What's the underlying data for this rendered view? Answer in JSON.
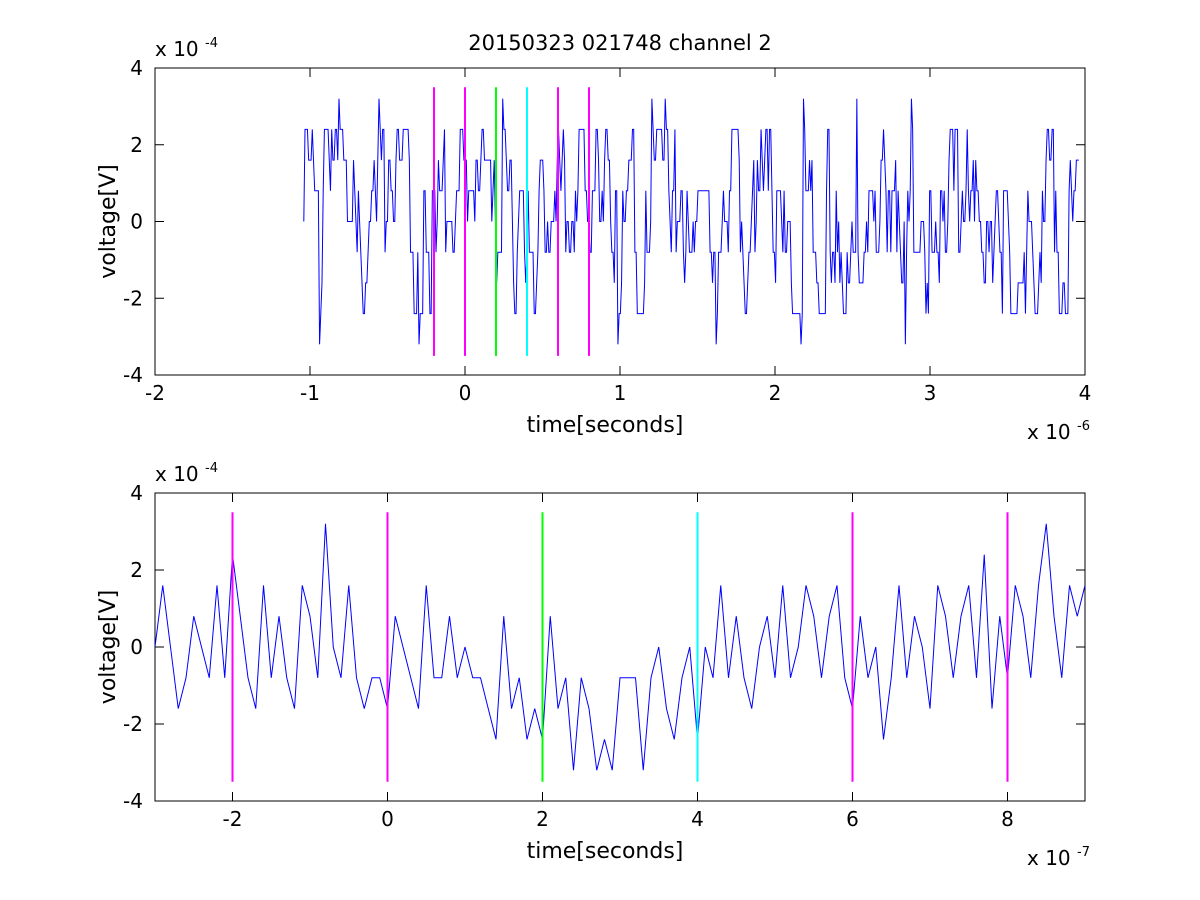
{
  "title": "20150323 021748 channel 2",
  "colors": {
    "signal": "#0000ff",
    "marker_magenta": "#ff00ff",
    "marker_green": "#00ff00",
    "marker_cyan": "#00ffff",
    "axes": "#000000",
    "background": "#ffffff"
  },
  "chart_data": [
    {
      "type": "line",
      "xlabel": "time[seconds]",
      "ylabel": "voltage[V]",
      "x_exponent_label": "x 10",
      "x_exponent": "-6",
      "y_exponent_label": "x 10",
      "y_exponent": "-4",
      "xlim": [
        -2,
        4
      ],
      "ylim": [
        -4,
        4
      ],
      "x_ticks": [
        -2,
        -1,
        0,
        1,
        2,
        3,
        4
      ],
      "x_tick_labels": [
        "-2",
        "-1",
        "0",
        "1",
        "2",
        "3",
        "4"
      ],
      "y_ticks": [
        -4,
        -2,
        0,
        2,
        4
      ],
      "y_tick_labels": [
        "-4",
        "-2",
        "0",
        "2",
        "4"
      ],
      "grid": false,
      "signal_x_range": [
        -1.04,
        3.96
      ],
      "signal_levels": [
        -3.2,
        -2.4,
        -1.6,
        -0.8,
        0,
        0.8,
        1.6,
        2.4,
        3.2
      ],
      "markers": [
        {
          "x": -0.2,
          "color": "magenta",
          "ymin": -3.5,
          "ymax": 3.5
        },
        {
          "x": 0.0,
          "color": "magenta",
          "ymin": -3.5,
          "ymax": 3.5
        },
        {
          "x": 0.2,
          "color": "green",
          "ymin": -3.5,
          "ymax": 3.5
        },
        {
          "x": 0.4,
          "color": "cyan",
          "ymin": -3.5,
          "ymax": 3.5
        },
        {
          "x": 0.6,
          "color": "magenta",
          "ymin": -3.5,
          "ymax": 3.5
        },
        {
          "x": 0.8,
          "color": "magenta",
          "ymin": -3.5,
          "ymax": 3.5
        }
      ]
    },
    {
      "type": "line",
      "xlabel": "time[seconds]",
      "ylabel": "voltage[V]",
      "x_exponent_label": "x 10",
      "x_exponent": "-7",
      "y_exponent_label": "x 10",
      "y_exponent": "-4",
      "xlim": [
        -3,
        9
      ],
      "ylim": [
        -4,
        4
      ],
      "x_ticks": [
        -2,
        0,
        2,
        4,
        6,
        8
      ],
      "x_tick_labels": [
        "-2",
        "0",
        "2",
        "4",
        "6",
        "8"
      ],
      "y_ticks": [
        -4,
        -2,
        0,
        2,
        4
      ],
      "y_tick_labels": [
        "-4",
        "-2",
        "0",
        "2",
        "4"
      ],
      "grid": false,
      "signal_levels": [
        -3.2,
        -2.4,
        -1.6,
        -0.8,
        0,
        0.8,
        1.6,
        2.4,
        3.2
      ],
      "markers": [
        {
          "x": -2,
          "color": "magenta",
          "ymin": -3.5,
          "ymax": 3.5
        },
        {
          "x": 0,
          "color": "magenta",
          "ymin": -3.5,
          "ymax": 3.5
        },
        {
          "x": 2,
          "color": "green",
          "ymin": -3.5,
          "ymax": 3.5
        },
        {
          "x": 4,
          "color": "cyan",
          "ymin": -3.5,
          "ymax": 3.5
        },
        {
          "x": 6,
          "color": "magenta",
          "ymin": -3.5,
          "ymax": 3.5
        },
        {
          "x": 8,
          "color": "magenta",
          "ymin": -3.5,
          "ymax": 3.5
        }
      ],
      "series": [
        {
          "x": [
            -3.0,
            -2.9,
            -2.8,
            -2.7,
            -2.6,
            -2.5,
            -2.4,
            -2.3,
            -2.2,
            -2.1,
            -2.0,
            -1.9,
            -1.8,
            -1.7,
            -1.6,
            -1.5,
            -1.4,
            -1.3,
            -1.2,
            -1.1,
            -1.0,
            -0.9,
            -0.8,
            -0.7,
            -0.6,
            -0.5,
            -0.4,
            -0.3,
            -0.2,
            -0.1,
            0.0,
            0.1,
            0.2,
            0.3,
            0.4,
            0.5,
            0.6,
            0.7,
            0.8,
            0.9,
            1.0,
            1.1,
            1.2,
            1.3,
            1.4,
            1.5,
            1.6,
            1.7,
            1.8,
            1.9,
            2.0,
            2.1,
            2.2,
            2.3,
            2.4,
            2.5,
            2.6,
            2.7,
            2.8,
            2.9,
            3.0,
            3.1,
            3.2,
            3.3,
            3.4,
            3.5,
            3.6,
            3.7,
            3.8,
            3.9,
            4.0,
            4.1,
            4.2,
            4.3,
            4.4,
            4.5,
            4.6,
            4.7,
            4.8,
            4.9,
            5.0,
            5.1,
            5.2,
            5.3,
            5.4,
            5.5,
            5.6,
            5.7,
            5.8,
            5.9,
            6.0,
            6.1,
            6.2,
            6.3,
            6.4,
            6.5,
            6.6,
            6.7,
            6.8,
            6.9,
            7.0,
            7.1,
            7.2,
            7.3,
            7.4,
            7.5,
            7.6,
            7.7,
            7.8,
            7.9,
            8.0,
            8.1,
            8.2,
            8.3,
            8.4,
            8.5,
            8.6,
            8.7,
            8.8,
            8.9,
            9.0
          ],
          "y": [
            0.0,
            1.6,
            0.0,
            -1.6,
            -0.8,
            0.8,
            0.0,
            -0.8,
            1.6,
            -0.8,
            2.4,
            0.8,
            -0.8,
            -1.6,
            1.6,
            -0.8,
            0.8,
            -0.8,
            -1.6,
            1.6,
            0.8,
            -0.8,
            3.2,
            0.0,
            -0.8,
            1.6,
            -0.8,
            -1.6,
            -0.8,
            -0.8,
            -1.6,
            0.8,
            0.0,
            -0.8,
            -1.6,
            1.6,
            -0.8,
            -0.8,
            0.8,
            -0.8,
            0.0,
            -0.8,
            -0.8,
            -1.6,
            -2.4,
            0.8,
            -1.6,
            -0.8,
            -2.4,
            -1.6,
            -2.4,
            0.8,
            -1.6,
            -0.8,
            -3.2,
            -0.8,
            -1.6,
            -3.2,
            -2.4,
            -3.2,
            -0.8,
            -0.8,
            -0.8,
            -3.2,
            -0.8,
            0.0,
            -1.6,
            -2.4,
            -0.8,
            0.0,
            -2.4,
            0.0,
            -0.8,
            1.6,
            -0.8,
            0.8,
            -0.8,
            -1.6,
            0.0,
            0.8,
            -0.8,
            1.6,
            -0.8,
            0.0,
            1.6,
            0.8,
            -0.8,
            0.8,
            1.6,
            -0.8,
            -1.6,
            0.8,
            -0.8,
            0.0,
            -2.4,
            -0.8,
            1.6,
            -0.8,
            0.8,
            0.0,
            -1.6,
            1.6,
            0.8,
            -0.8,
            0.8,
            1.6,
            -0.8,
            2.4,
            -1.6,
            0.8,
            -0.8,
            1.6,
            0.8,
            -0.8,
            1.6,
            3.2,
            0.8,
            -0.8,
            1.6,
            0.8,
            1.6
          ]
        }
      ]
    }
  ]
}
